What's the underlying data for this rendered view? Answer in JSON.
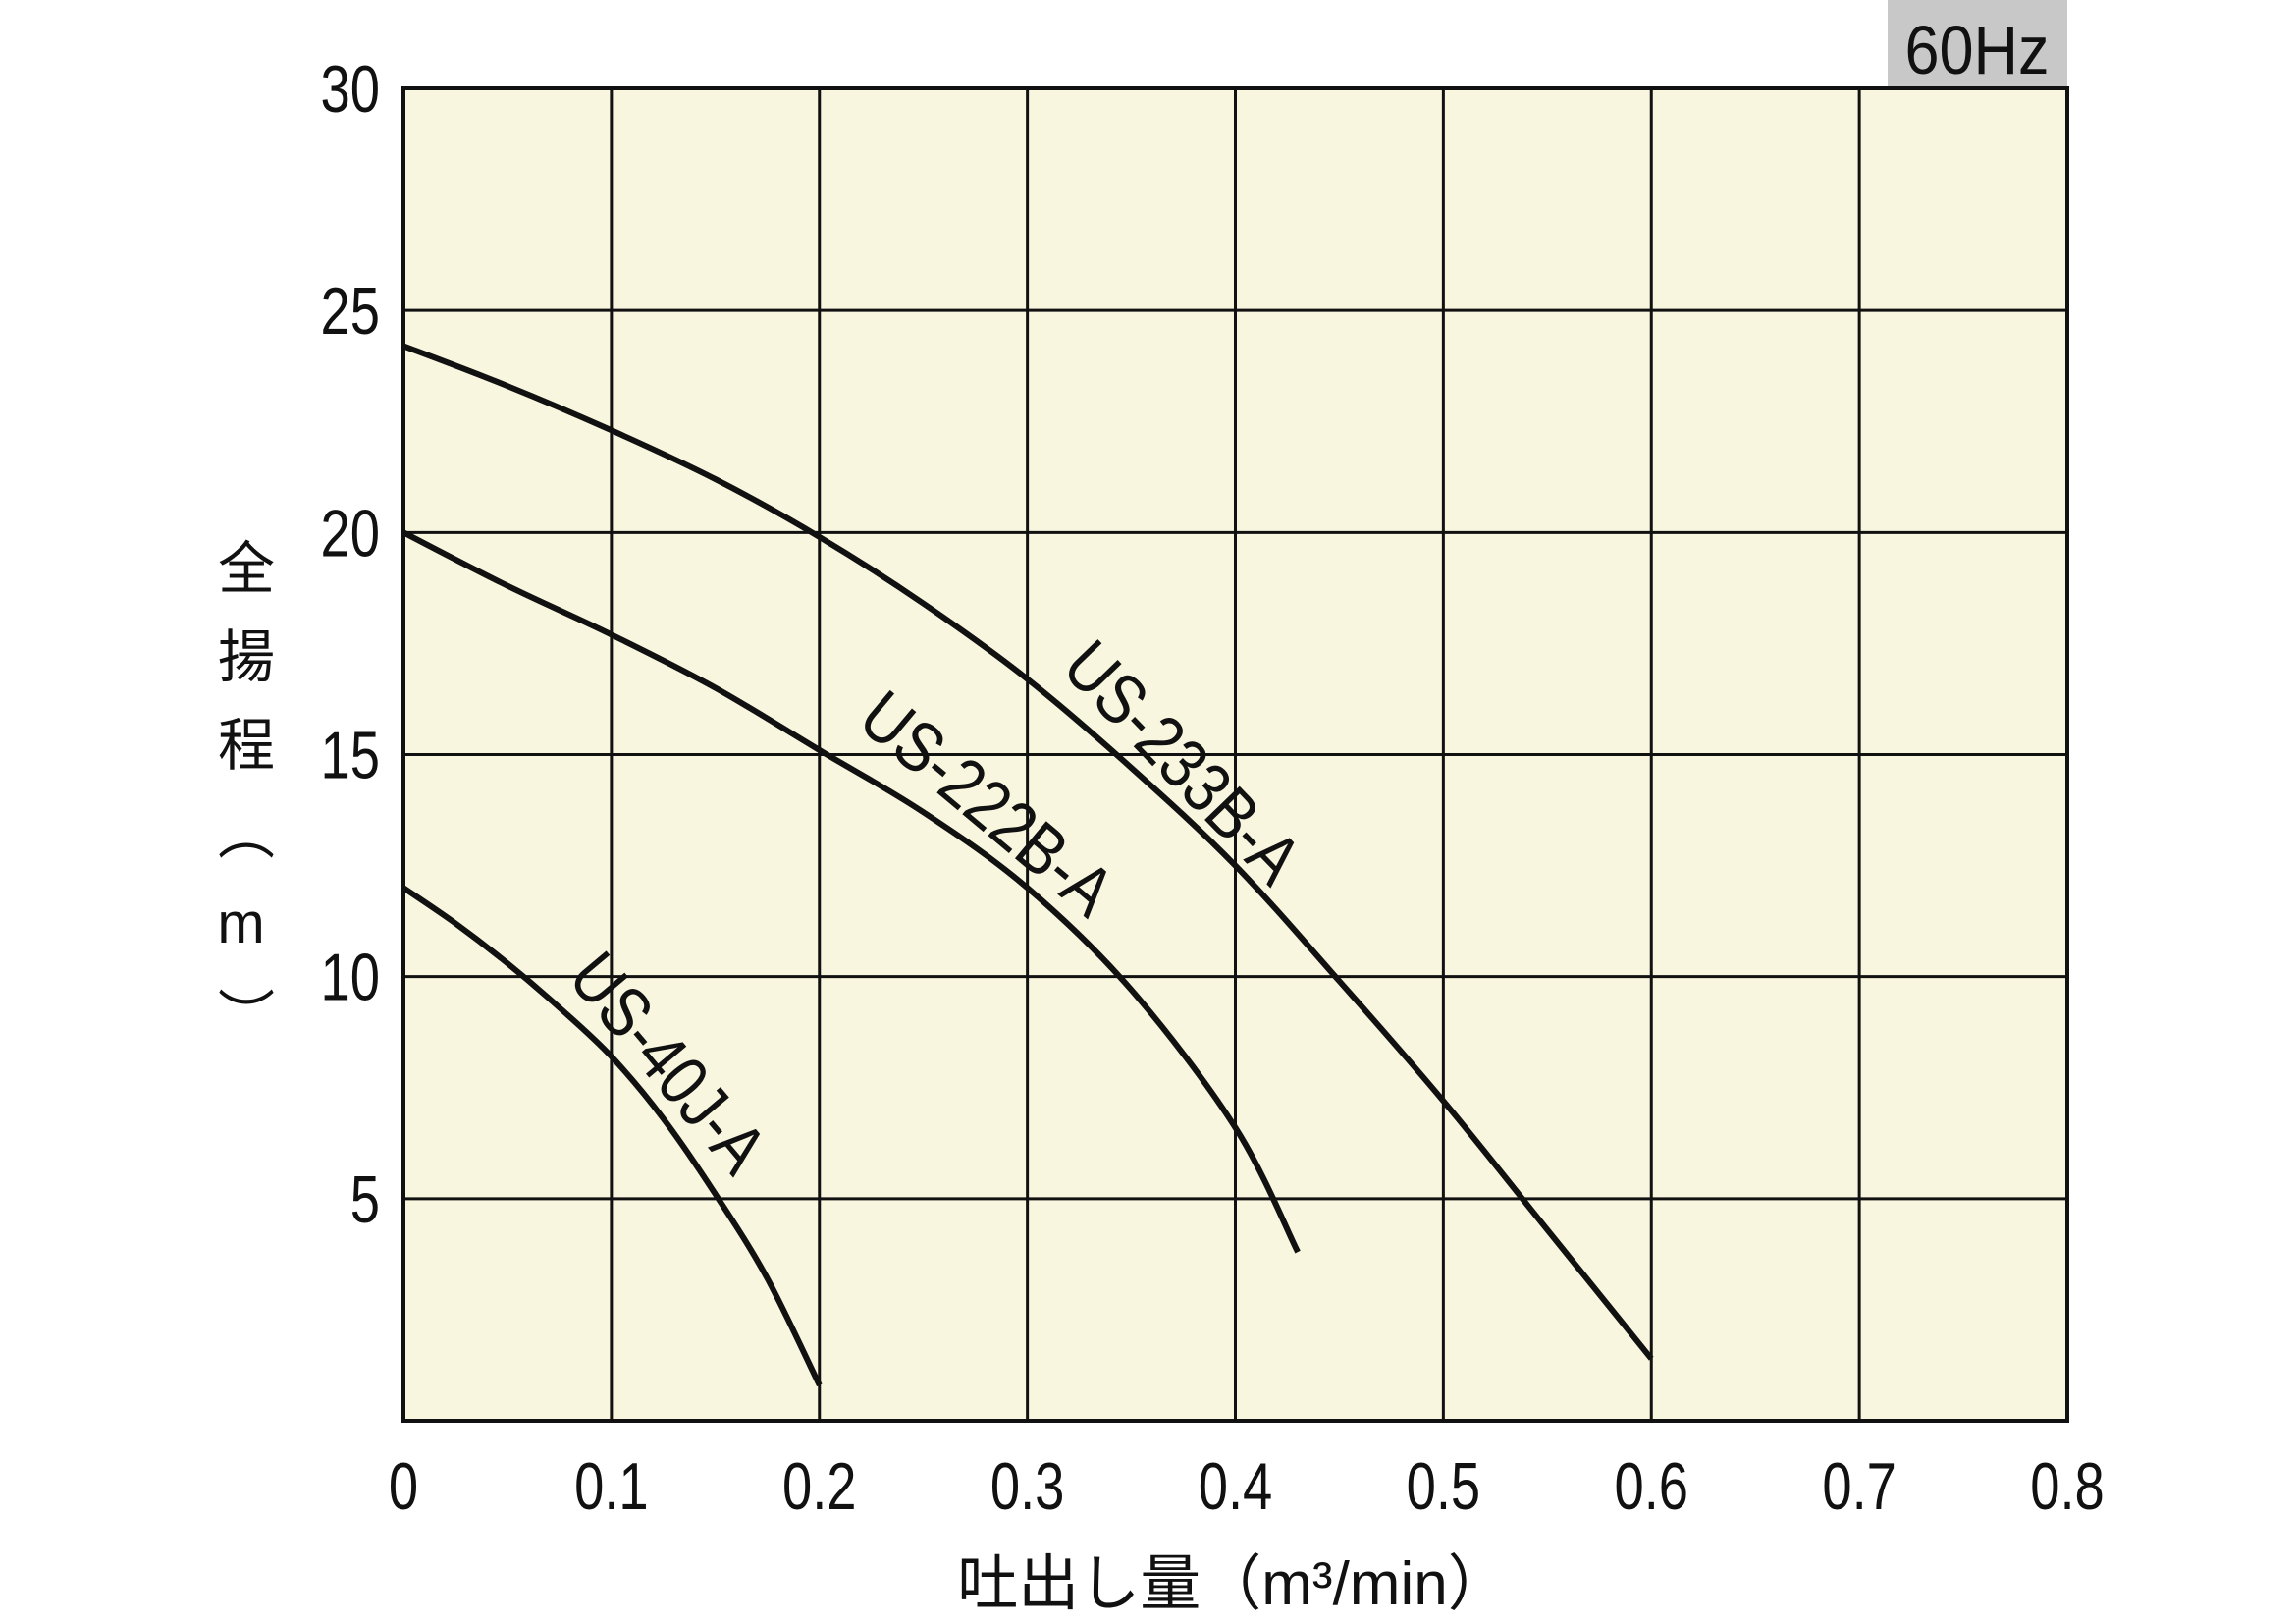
{
  "chart_data": {
    "type": "line",
    "annotation": "60Hz",
    "xlabel": "吐出し量（m³/min）",
    "ylabel": "全揚程（m）",
    "xlim": [
      0,
      0.8
    ],
    "ylim": [
      0,
      30
    ],
    "xticks": [
      "0",
      "0.1",
      "0.2",
      "0.3",
      "0.4",
      "0.5",
      "0.6",
      "0.7",
      "0.8"
    ],
    "yticks": [
      "5",
      "10",
      "15",
      "20",
      "25",
      "30"
    ],
    "grid": true,
    "colors": {
      "plot_background": "#f9f6df",
      "badge_background": "#c8c8c8",
      "gridline": "#111111",
      "curve": "#111111"
    },
    "series": [
      {
        "name": "US-233B-A",
        "x": [
          0,
          0.05,
          0.1,
          0.15,
          0.2,
          0.25,
          0.3,
          0.35,
          0.4,
          0.45,
          0.5,
          0.55,
          0.6
        ],
        "y": [
          24.2,
          23.3,
          22.3,
          21.2,
          19.9,
          18.4,
          16.7,
          14.7,
          12.5,
          9.9,
          7.2,
          4.3,
          1.4
        ]
      },
      {
        "name": "US-222B-A",
        "x": [
          0,
          0.05,
          0.1,
          0.15,
          0.2,
          0.25,
          0.3,
          0.35,
          0.4,
          0.43
        ],
        "y": [
          20.0,
          18.8,
          17.7,
          16.5,
          15.1,
          13.7,
          12.0,
          9.7,
          6.6,
          3.8
        ]
      },
      {
        "name": "US-40J-A",
        "x": [
          0,
          0.025,
          0.05,
          0.075,
          0.1,
          0.125,
          0.15,
          0.175,
          0.2
        ],
        "y": [
          12.0,
          11.2,
          10.3,
          9.3,
          8.2,
          6.8,
          5.1,
          3.2,
          0.8
        ]
      }
    ]
  }
}
